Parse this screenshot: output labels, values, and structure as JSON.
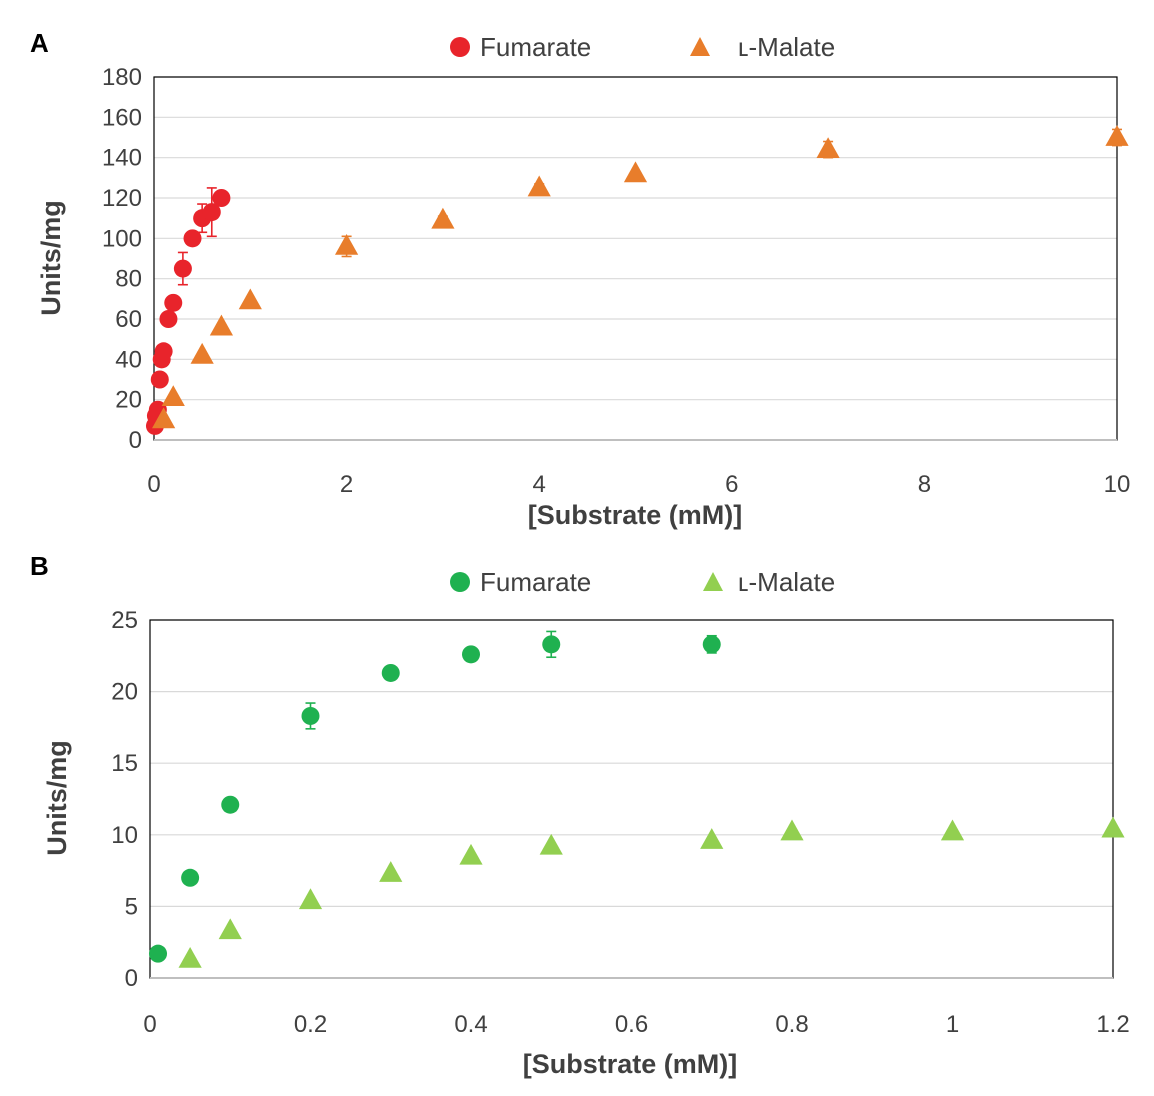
{
  "chart_data": [
    {
      "type": "scatter",
      "panel_label": "A",
      "xlabel": "[Substrate (mM)]",
      "ylabel": "Units/mg",
      "xlim": [
        0,
        10
      ],
      "ylim": [
        0,
        180
      ],
      "x_ticks": [
        0,
        2,
        4,
        6,
        8,
        10
      ],
      "y_ticks": [
        0,
        20,
        40,
        60,
        80,
        100,
        120,
        140,
        160,
        180
      ],
      "x_tick_labels": [
        "0",
        "2",
        "4",
        "6",
        "8",
        "10"
      ],
      "y_tick_labels": [
        "0",
        "20",
        "40",
        "60",
        "80",
        "100",
        "120",
        "140",
        "160",
        "180"
      ],
      "grid": true,
      "legend_position": "top",
      "series": [
        {
          "name": "Fumarate",
          "marker": "circle",
          "color": "#e8242b",
          "x": [
            0.01,
            0.02,
            0.04,
            0.06,
            0.08,
            0.1,
            0.15,
            0.2,
            0.3,
            0.4,
            0.5,
            0.6,
            0.7
          ],
          "y": [
            7,
            12,
            15,
            30,
            40,
            44,
            60,
            68,
            85,
            100,
            110,
            113,
            120
          ],
          "err": [
            0,
            0,
            0,
            0,
            0,
            0,
            0,
            0,
            8,
            0,
            7,
            12,
            0
          ]
        },
        {
          "name": "ʟ-Malate",
          "marker": "triangle",
          "color": "#e87d2b",
          "x": [
            0.1,
            0.2,
            0.5,
            0.7,
            1,
            2,
            3,
            4,
            5,
            7,
            10
          ],
          "y": [
            10,
            21,
            42,
            56,
            69,
            96,
            109,
            125,
            132,
            144,
            150
          ],
          "err": [
            0,
            0,
            0,
            0,
            0,
            5,
            2,
            2,
            0,
            4,
            4
          ]
        }
      ]
    },
    {
      "type": "scatter",
      "panel_label": "B",
      "xlabel": "[Substrate (mM)]",
      "ylabel": "Units/mg",
      "xlim": [
        0,
        1.2
      ],
      "ylim": [
        0,
        25
      ],
      "x_ticks": [
        0,
        0.2,
        0.4,
        0.6,
        0.8,
        1,
        1.2
      ],
      "y_ticks": [
        0,
        5,
        10,
        15,
        20,
        25
      ],
      "x_tick_labels": [
        "0",
        "0.2",
        "0.4",
        "0.6",
        "0.8",
        "1",
        "1.2"
      ],
      "y_tick_labels": [
        "0",
        "5",
        "10",
        "15",
        "20",
        "25"
      ],
      "grid": true,
      "legend_position": "top",
      "series": [
        {
          "name": "Fumarate",
          "marker": "circle",
          "color": "#1fb150",
          "x": [
            0.01,
            0.05,
            0.1,
            0.2,
            0.3,
            0.4,
            0.5,
            0.7
          ],
          "y": [
            1.7,
            7.0,
            12.1,
            18.3,
            21.3,
            22.6,
            23.3,
            23.3
          ],
          "err": [
            0,
            0,
            0,
            0.9,
            0,
            0,
            0.9,
            0.6
          ]
        },
        {
          "name": "ʟ-Malate",
          "marker": "triangle",
          "color": "#92cf50",
          "x": [
            0.05,
            0.1,
            0.2,
            0.3,
            0.4,
            0.5,
            0.7,
            0.8,
            1,
            1.2
          ],
          "y": [
            1.3,
            3.3,
            5.4,
            7.3,
            8.5,
            9.2,
            9.6,
            10.2,
            10.2,
            10.4
          ],
          "err": [
            0,
            0,
            0,
            0,
            0,
            0,
            0,
            0,
            0,
            0
          ]
        }
      ]
    }
  ]
}
